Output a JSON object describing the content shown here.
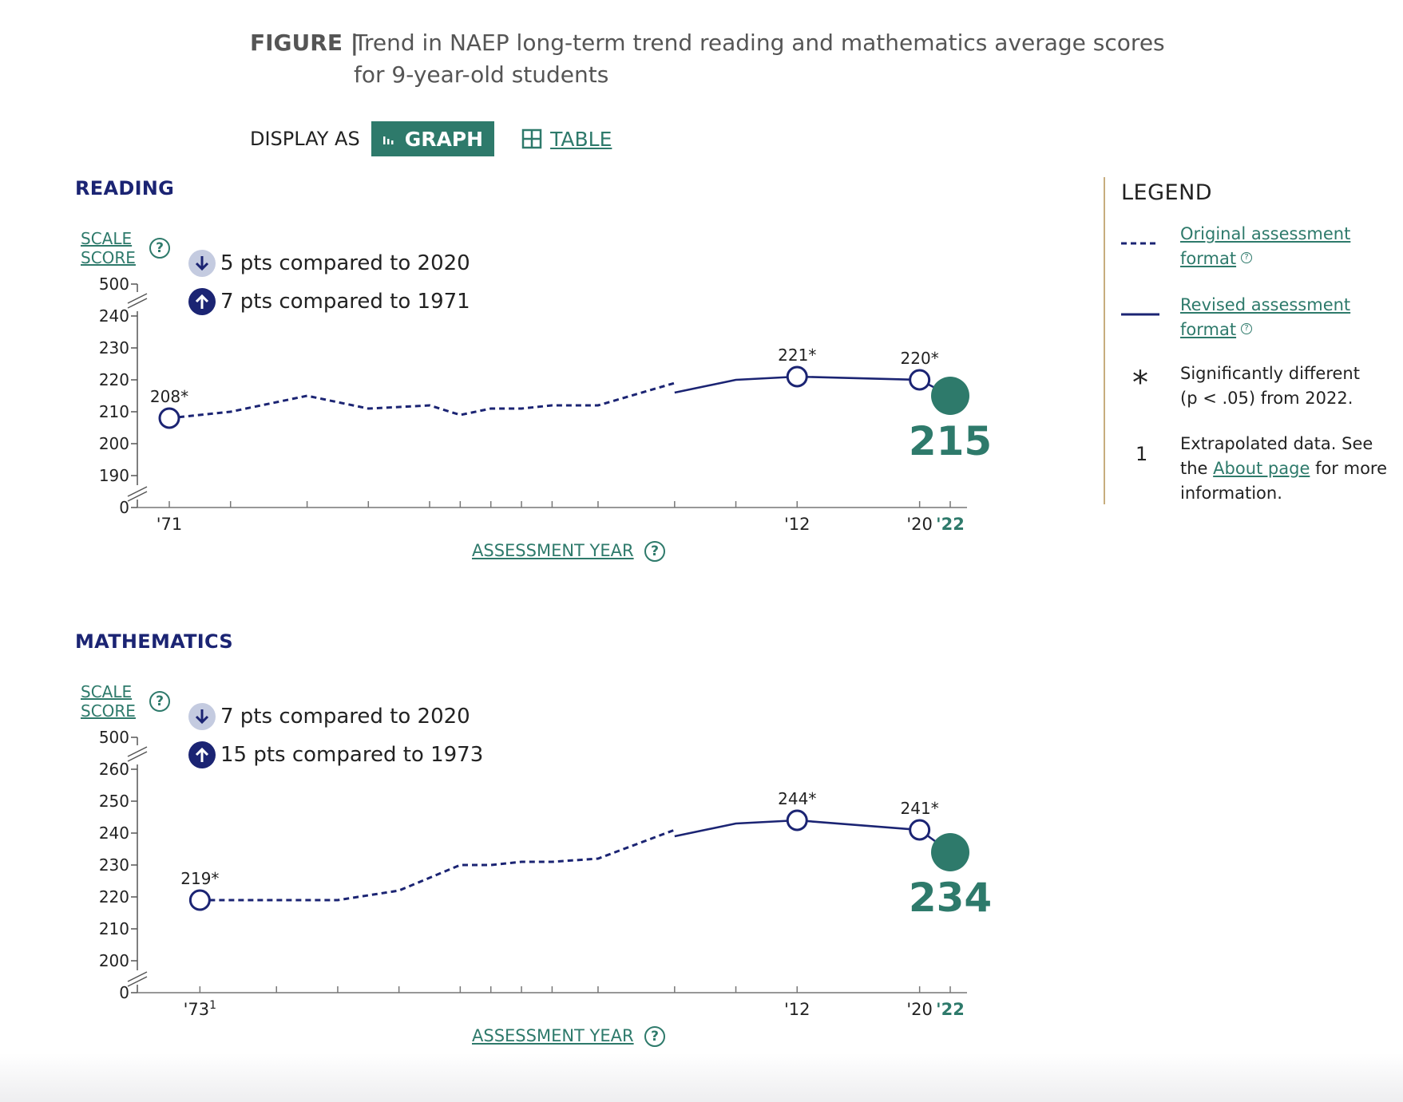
{
  "figure": {
    "lead": "FIGURE |",
    "title": "Trend in NAEP long-term trend reading and mathematics average scores for 9-year-old students"
  },
  "display": {
    "label": "DISPLAY AS",
    "graph_label": "GRAPH",
    "table_label": "TABLE",
    "selected": "GRAPH"
  },
  "colors": {
    "accent": "#2e7a6b",
    "navy": "#1b2473",
    "legend_border": "#c7ad7e"
  },
  "axis_year_label": "ASSESSMENT YEAR",
  "reading": {
    "title": "READING",
    "scale_label_1": "SCALE",
    "scale_label_2": "SCORE",
    "compare_2020": "5 pts compared to 2020",
    "compare_base": "7 pts compared to 1971"
  },
  "math": {
    "title": "MATHEMATICS",
    "scale_label_1": "SCALE",
    "scale_label_2": "SCORE",
    "compare_2020": "7 pts compared to 2020",
    "compare_base": "15 pts compared to 1973"
  },
  "legend": {
    "title": "LEGEND",
    "original_link": "Original assessment format",
    "revised_link": "Revised assessment format",
    "sig_symbol": "*",
    "sig_text_1": "Significantly different",
    "sig_text_2": "(p < .05) from 2022.",
    "extrap_symbol": "1",
    "extrap_text_1": "Extrapolated data. See the",
    "extrap_link": "About page",
    "extrap_text_2": "for more information."
  },
  "chart_data": [
    {
      "type": "line",
      "name": "reading",
      "title": "READING",
      "ylabel": "SCALE SCORE",
      "xlabel": "ASSESSMENT YEAR",
      "y_ticks": [
        "0",
        "190",
        "200",
        "210",
        "220",
        "230",
        "240",
        "500"
      ],
      "x_tick_labels": [
        {
          "year": 1971,
          "label": "'71"
        },
        {
          "year": 2012,
          "label": "'12"
        },
        {
          "year": 2020,
          "label": "'20"
        },
        {
          "year": 2022,
          "label": "'22"
        }
      ],
      "ylim": [
        190,
        240
      ],
      "axis_break": true,
      "series": [
        {
          "name": "Original assessment format",
          "style": "dashed",
          "points": [
            [
              1971,
              208
            ],
            [
              1975,
              210
            ],
            [
              1980,
              215
            ],
            [
              1984,
              211
            ],
            [
              1988,
              212
            ],
            [
              1990,
              209
            ],
            [
              1992,
              211
            ],
            [
              1994,
              211
            ],
            [
              1996,
              212
            ],
            [
              1999,
              212
            ],
            [
              2004,
              219
            ]
          ]
        },
        {
          "name": "Revised assessment format",
          "style": "solid",
          "points": [
            [
              2004,
              216
            ],
            [
              2008,
              220
            ],
            [
              2012,
              221
            ],
            [
              2020,
              220
            ],
            [
              2022,
              215
            ]
          ]
        }
      ],
      "labeled_points": [
        {
          "x": 1971,
          "y": 208,
          "label": "208*"
        },
        {
          "x": 2012,
          "y": 221,
          "label": "221*"
        },
        {
          "x": 2020,
          "y": 220,
          "label": "220*"
        }
      ],
      "highlight": {
        "x": 2022,
        "y": 215,
        "label": "215"
      }
    },
    {
      "type": "line",
      "name": "mathematics",
      "title": "MATHEMATICS",
      "ylabel": "SCALE SCORE",
      "xlabel": "ASSESSMENT YEAR",
      "y_ticks": [
        "0",
        "200",
        "210",
        "220",
        "230",
        "240",
        "250",
        "260",
        "500"
      ],
      "x_tick_labels": [
        {
          "year": 1973,
          "label": "'73",
          "sup": "1"
        },
        {
          "year": 2012,
          "label": "'12"
        },
        {
          "year": 2020,
          "label": "'20"
        },
        {
          "year": 2022,
          "label": "'22"
        }
      ],
      "ylim": [
        200,
        260
      ],
      "axis_break": true,
      "series": [
        {
          "name": "Original assessment format",
          "style": "dashed",
          "points": [
            [
              1973,
              219
            ],
            [
              1978,
              219
            ],
            [
              1982,
              219
            ],
            [
              1986,
              222
            ],
            [
              1990,
              230
            ],
            [
              1992,
              230
            ],
            [
              1994,
              231
            ],
            [
              1996,
              231
            ],
            [
              1999,
              232
            ],
            [
              2004,
              241
            ]
          ]
        },
        {
          "name": "Revised assessment format",
          "style": "solid",
          "points": [
            [
              2004,
              239
            ],
            [
              2008,
              243
            ],
            [
              2012,
              244
            ],
            [
              2020,
              241
            ],
            [
              2022,
              234
            ]
          ]
        }
      ],
      "labeled_points": [
        {
          "x": 1973,
          "y": 219,
          "label": "219*"
        },
        {
          "x": 2012,
          "y": 244,
          "label": "244*"
        },
        {
          "x": 2020,
          "y": 241,
          "label": "241*"
        }
      ],
      "highlight": {
        "x": 2022,
        "y": 234,
        "label": "234"
      }
    }
  ]
}
